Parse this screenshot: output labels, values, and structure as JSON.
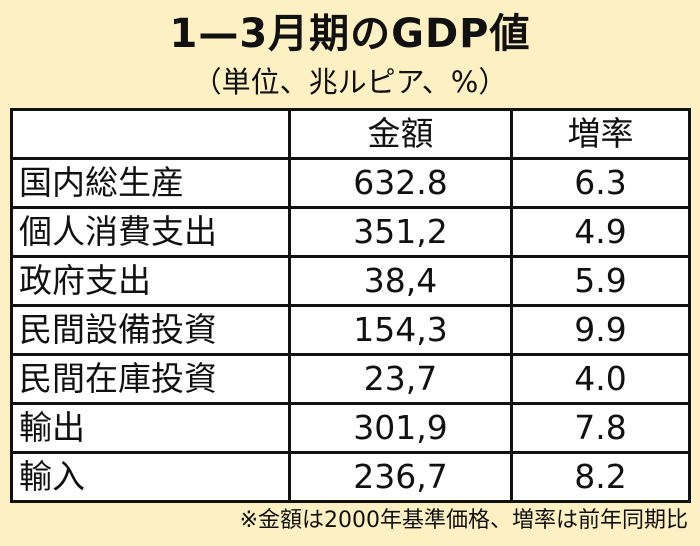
{
  "title": "1—3月期のGDP値",
  "subtitle": "（単位、兆ルピア、%）",
  "table": {
    "headers": [
      "",
      "金額",
      "増率"
    ],
    "rows": [
      {
        "item": "国内総生産",
        "amount": "632.8",
        "rate": "6.3"
      },
      {
        "item": "個人消費支出",
        "amount": "351,2",
        "rate": "4.9"
      },
      {
        "item": "政府支出",
        "amount": "38,4",
        "rate": "5.9"
      },
      {
        "item": "民間設備投資",
        "amount": "154,3",
        "rate": "9.9"
      },
      {
        "item": "民間在庫投資",
        "amount": "23,7",
        "rate": "4.0"
      },
      {
        "item": "輸出",
        "amount": "301,9",
        "rate": "7.8"
      },
      {
        "item": "輸入",
        "amount": "236,7",
        "rate": "8.2"
      }
    ]
  },
  "note": "※金額は2000年基準価格、増率は前年同期比",
  "colors": {
    "background": "#fdf0c2",
    "table_background": "#ffffff",
    "border": "#111111"
  }
}
